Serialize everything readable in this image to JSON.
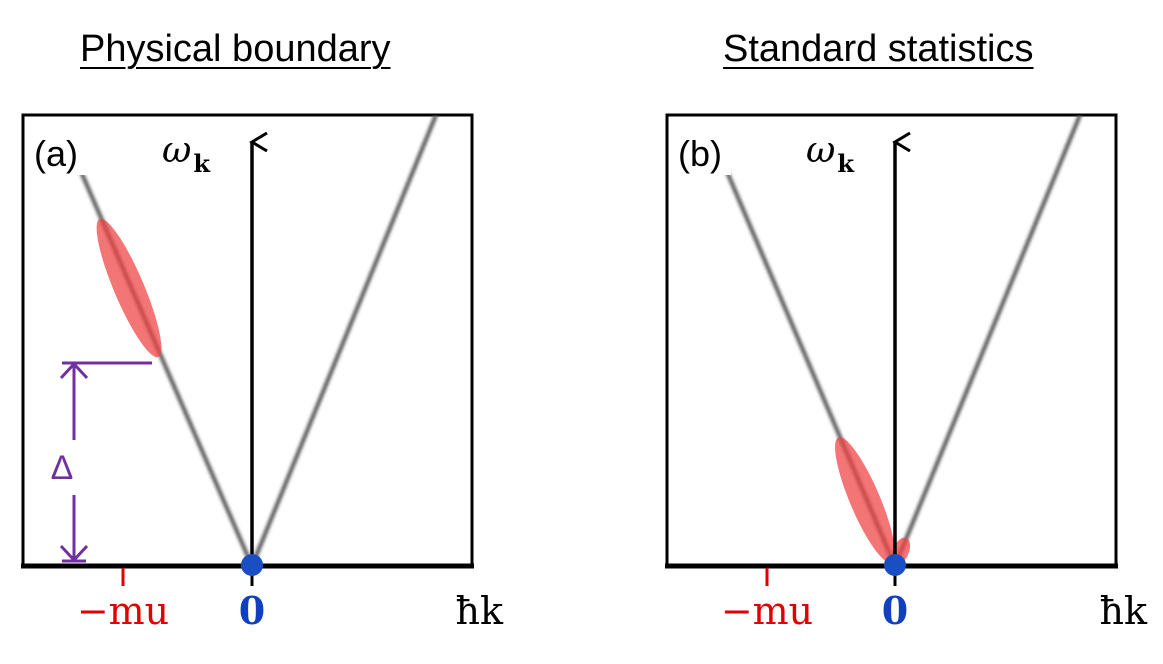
{
  "panels": [
    {
      "id": "a",
      "title": "Physical boundary",
      "label": "(a)",
      "y_axis_label": "ω",
      "y_axis_subscript": "k",
      "x_ticks": {
        "neg": "−mu",
        "zero": "0",
        "axis": "ħk"
      },
      "gap_label": "Δ"
    },
    {
      "id": "b",
      "title": "Standard statistics",
      "label": "(b)",
      "y_axis_label": "ω",
      "y_axis_subscript": "k",
      "x_ticks": {
        "neg": "−mu",
        "zero": "0",
        "axis": "ħk"
      }
    }
  ],
  "colors": {
    "dispersion": "#555555",
    "highlight": "#f04040",
    "origin": "#1a4fc4",
    "neg_tick": "#e00000",
    "gap_marker": "#7030a0"
  }
}
